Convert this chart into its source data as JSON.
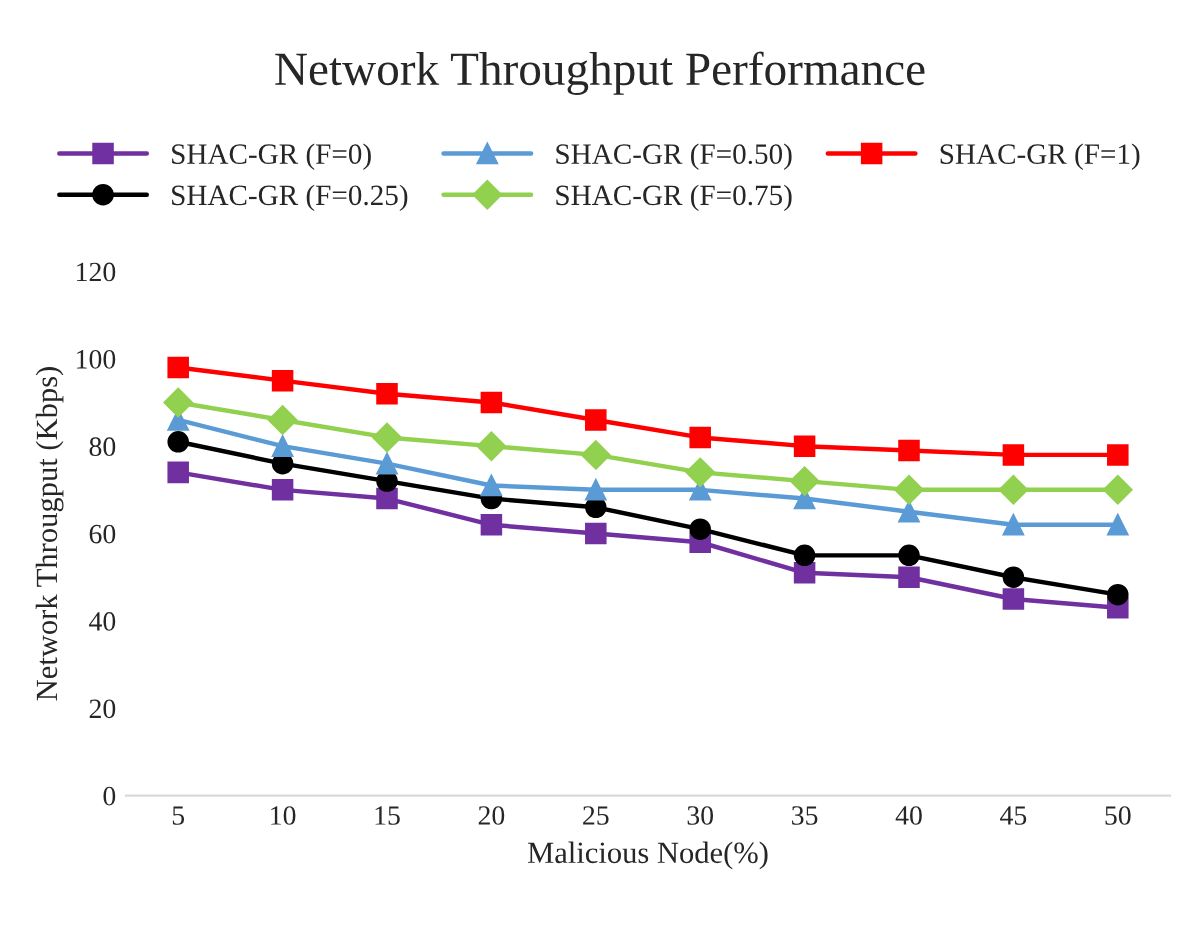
{
  "chart_data": {
    "type": "line",
    "title": "Network Throughput Performance",
    "xlabel": "Malicious Node(%)",
    "ylabel": "Network Througput (Kbps)",
    "categories": [
      "5",
      "10",
      "15",
      "20",
      "25",
      "30",
      "35",
      "40",
      "45",
      "50"
    ],
    "series": [
      {
        "name": "SHAC-GR (F=0)",
        "color": "#7030a0",
        "marker": "square",
        "values": [
          74,
          70,
          68,
          62,
          60,
          58,
          51,
          50,
          45,
          43
        ]
      },
      {
        "name": "SHAC-GR (F=0.25)",
        "color": "#000000",
        "marker": "circle",
        "values": [
          81,
          76,
          72,
          68,
          66,
          61,
          55,
          55,
          50,
          46
        ]
      },
      {
        "name": "SHAC-GR (F=0.50)",
        "color": "#5b9bd5",
        "marker": "triangle",
        "values": [
          86,
          80,
          76,
          71,
          70,
          70,
          68,
          65,
          62,
          62
        ]
      },
      {
        "name": "SHAC-GR (F=0.75)",
        "color": "#92d050",
        "marker": "diamond",
        "values": [
          90,
          86,
          82,
          80,
          78,
          74,
          72,
          70,
          70,
          70
        ]
      },
      {
        "name": "SHAC-GR (F=1)",
        "color": "#ff0000",
        "marker": "square",
        "values": [
          98,
          95,
          92,
          90,
          86,
          82,
          80,
          79,
          78,
          78
        ]
      }
    ],
    "ylim": [
      0,
      120
    ],
    "yticks": [
      0,
      20,
      40,
      60,
      80,
      100,
      120
    ],
    "grid": false,
    "legend": "top",
    "line_style": "solid"
  }
}
